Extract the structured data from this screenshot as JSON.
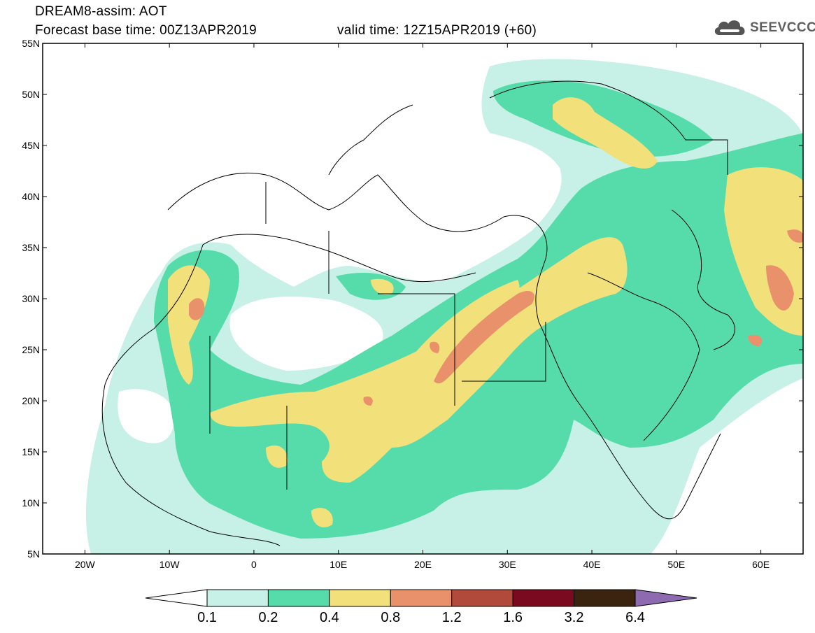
{
  "header": {
    "title_line1": "DREAM8-assim: AOT",
    "title_line2": "Forecast base time: 00Z13APR2019",
    "valid_time": "valid time: 12Z15APR2019 (+60)",
    "logo_text": "SEEVCCC"
  },
  "map": {
    "lon_range": [
      -25,
      65
    ],
    "lat_range": [
      5,
      55
    ],
    "lat_ticks": [
      {
        "value": 55,
        "label": "55N"
      },
      {
        "value": 50,
        "label": "50N"
      },
      {
        "value": 45,
        "label": "45N"
      },
      {
        "value": 40,
        "label": "40N"
      },
      {
        "value": 35,
        "label": "35N"
      },
      {
        "value": 30,
        "label": "30N"
      },
      {
        "value": 25,
        "label": "25N"
      },
      {
        "value": 20,
        "label": "20N"
      },
      {
        "value": 15,
        "label": "15N"
      },
      {
        "value": 10,
        "label": "10N"
      },
      {
        "value": 5,
        "label": "5N"
      }
    ],
    "lon_ticks": [
      {
        "value": -20,
        "label": "20W"
      },
      {
        "value": -10,
        "label": "10W"
      },
      {
        "value": 0,
        "label": "0"
      },
      {
        "value": 10,
        "label": "10E"
      },
      {
        "value": 20,
        "label": "20E"
      },
      {
        "value": 30,
        "label": "30E"
      },
      {
        "value": 40,
        "label": "40E"
      },
      {
        "value": 50,
        "label": "50E"
      },
      {
        "value": 60,
        "label": "60E"
      }
    ]
  },
  "colorbar": {
    "colors": [
      "#c7f0e6",
      "#55dcaa",
      "#f2e07a",
      "#e8916a",
      "#b14a3a",
      "#7a0a20",
      "#3a2410",
      "#8e6bb0"
    ],
    "under_color": "#ffffff",
    "labels": [
      "0.1",
      "0.2",
      "0.4",
      "0.8",
      "1.2",
      "1.6",
      "3.2",
      "6.4"
    ]
  }
}
